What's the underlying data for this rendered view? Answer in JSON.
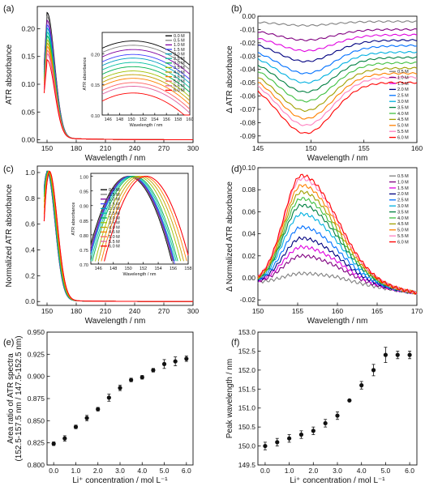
{
  "chart_data": [
    {
      "id": "a",
      "panel_label": "(a)",
      "type": "line",
      "xlabel": "Wavelength / nm",
      "ylabel": "ATR absorbance",
      "xlim": [
        140,
        300
      ],
      "ylim": [
        -0.005,
        0.24
      ],
      "xticks": [
        150,
        180,
        210,
        240,
        270,
        300
      ],
      "yticks": [
        0.0,
        0.05,
        0.1,
        0.15,
        0.2
      ],
      "ytick_labels": [
        "0.00",
        "0.05",
        "0.10",
        "0.15",
        "0.20"
      ],
      "curve_model": "absorption_band",
      "peak_at": 150,
      "peaks": [
        0.225,
        0.218,
        0.211,
        0.203,
        0.197,
        0.19,
        0.183,
        0.176,
        0.17,
        0.164,
        0.157,
        0.151,
        0.14
      ],
      "inset": {
        "xlabel": "Wavelength / nm",
        "ylabel": "ATR absorbance",
        "xlim": [
          145,
          160
        ],
        "ylim": [
          0.1,
          0.235
        ],
        "xticks": [
          146,
          148,
          150,
          152,
          154,
          156,
          158,
          160
        ],
        "yticks": [
          0.1,
          0.15,
          0.2
        ],
        "ytick_labels": [
          "0.10",
          "0.15",
          "0.20"
        ],
        "curve_model": "inset_abs"
      }
    },
    {
      "id": "b",
      "panel_label": "(b)",
      "type": "line",
      "xlabel": "Wavelength / nm",
      "ylabel": "Δ ATR absorbance",
      "xlim": [
        145,
        160
      ],
      "ylim": [
        -0.095,
        0.0
      ],
      "xticks": [
        145,
        150,
        155,
        160
      ],
      "yticks": [
        0.0,
        -0.01,
        -0.02,
        -0.03,
        -0.04,
        -0.05,
        -0.06,
        -0.07,
        -0.08,
        -0.09
      ],
      "ytick_labels": [
        "0.00",
        "-0.01",
        "-0.02",
        "-0.03",
        "-0.04",
        "-0.05",
        "-0.06",
        "-0.07",
        "-0.08",
        "-0.09"
      ],
      "curve_model": "difference_dip",
      "min_at": 149.5,
      "minima": [
        -0.007,
        -0.018,
        -0.026,
        -0.034,
        -0.043,
        -0.05,
        -0.057,
        -0.064,
        -0.071,
        -0.077,
        -0.082,
        -0.088
      ],
      "ends": [
        -0.004,
        -0.01,
        -0.014,
        -0.018,
        -0.022,
        -0.027,
        -0.031,
        -0.035,
        -0.039,
        -0.043,
        -0.046,
        -0.05
      ]
    },
    {
      "id": "c",
      "panel_label": "(c)",
      "type": "line",
      "xlabel": "Wavelength / nm",
      "ylabel": "Normalized ATR absorbance",
      "xlim": [
        140,
        300
      ],
      "ylim": [
        -0.03,
        1.05
      ],
      "xticks": [
        150,
        180,
        210,
        240,
        270,
        300
      ],
      "yticks": [
        0.0,
        0.2,
        0.4,
        0.6,
        0.8,
        1.0
      ],
      "ytick_labels": [
        "0.0",
        "0.2",
        "0.4",
        "0.6",
        "0.8",
        "1.0"
      ],
      "curve_model": "normalized_band",
      "inset": {
        "xlabel": "Wavelength / nm",
        "ylabel": "ATR absorbance",
        "xlim": [
          145,
          158
        ],
        "ylim": [
          0.7,
          1.01
        ],
        "xticks": [
          146,
          148,
          150,
          152,
          154,
          156,
          158
        ],
        "yticks": [
          0.7,
          0.75,
          0.8,
          0.85,
          0.9,
          0.95,
          1.0
        ],
        "ytick_labels": [
          "0.70",
          "0.75",
          "0.80",
          "0.85",
          "0.90",
          "0.95",
          "1.00"
        ],
        "curve_model": "inset_norm",
        "peak_shift": [
          150.0,
          150.1,
          150.2,
          150.3,
          150.4,
          150.6,
          150.8,
          151.2,
          151.6,
          152.0,
          152.4,
          152.4,
          152.4
        ]
      }
    },
    {
      "id": "d",
      "panel_label": "(d)",
      "type": "line",
      "xlabel": "Wavelength / nm",
      "ylabel": "Δ Normalized ATR absorbance",
      "xlim": [
        150,
        170
      ],
      "ylim": [
        -0.025,
        0.1
      ],
      "xticks": [
        150,
        155,
        160,
        165,
        170
      ],
      "yticks": [
        -0.02,
        0.0,
        0.02,
        0.04,
        0.06,
        0.08,
        0.1
      ],
      "ytick_labels": [
        "-0.02",
        "0.00",
        "0.02",
        "0.04",
        "0.06",
        "0.08",
        "0.10"
      ],
      "curve_model": "normalized_difference",
      "peak_at": 155.5,
      "peaks": [
        0.008,
        0.024,
        0.032,
        0.04,
        0.05,
        0.062,
        0.07,
        0.076,
        0.082,
        0.088,
        0.094,
        0.097
      ]
    },
    {
      "id": "e",
      "panel_label": "(e)",
      "type": "scatter",
      "xlabel": "Li⁺ concentration / mol L⁻¹",
      "ylabel": "Area ratio of ATR spectra (152.5-157.5 nm / 147.5-152.5 nm)",
      "ylabel_lines": [
        "Area ratio of ATR spectra",
        "(152.5-157.5 nm / 147.5-152.5 nm)"
      ],
      "xlim": [
        -0.3,
        6.3
      ],
      "ylim": [
        0.8,
        0.95
      ],
      "xticks": [
        0.0,
        1.0,
        2.0,
        3.0,
        4.0,
        5.0,
        6.0
      ],
      "xtick_labels": [
        "0.0",
        "1.0",
        "2.0",
        "3.0",
        "4.0",
        "5.0",
        "6.0"
      ],
      "yticks": [
        0.8,
        0.825,
        0.85,
        0.875,
        0.9,
        0.925,
        0.95
      ],
      "ytick_labels": [
        "0.800",
        "0.825",
        "0.850",
        "0.875",
        "0.900",
        "0.925",
        "0.950"
      ],
      "x": [
        0.0,
        0.5,
        1.0,
        1.5,
        2.0,
        2.5,
        3.0,
        3.5,
        4.0,
        4.5,
        5.0,
        5.5,
        6.0
      ],
      "y": [
        0.824,
        0.83,
        0.843,
        0.853,
        0.863,
        0.876,
        0.887,
        0.896,
        0.899,
        0.907,
        0.914,
        0.917,
        0.92
      ],
      "err": [
        0.002,
        0.003,
        0.002,
        0.003,
        0.002,
        0.004,
        0.003,
        0.002,
        0.002,
        0.002,
        0.005,
        0.005,
        0.003
      ]
    },
    {
      "id": "f",
      "panel_label": "(f)",
      "type": "scatter",
      "xlabel": "Li⁺ concentration / mol L⁻¹",
      "ylabel": "Peak wavelength / nm",
      "xlim": [
        -0.3,
        6.3
      ],
      "ylim": [
        149.5,
        153.0
      ],
      "xticks": [
        0.0,
        1.0,
        2.0,
        3.0,
        4.0,
        5.0,
        6.0
      ],
      "xtick_labels": [
        "0.0",
        "1.0",
        "2.0",
        "3.0",
        "4.0",
        "5.0",
        "6.0"
      ],
      "yticks": [
        149.5,
        150.0,
        150.5,
        151.0,
        151.5,
        152.0,
        152.5,
        153.0
      ],
      "ytick_labels": [
        "149.5",
        "150.0",
        "150.5",
        "151.0",
        "151.5",
        "152.0",
        "152.5",
        "153.0"
      ],
      "x": [
        0.0,
        0.5,
        1.0,
        1.5,
        2.0,
        2.5,
        3.0,
        3.5,
        4.0,
        4.5,
        5.0,
        5.5,
        6.0
      ],
      "y": [
        150.0,
        150.1,
        150.2,
        150.3,
        150.4,
        150.6,
        150.8,
        151.2,
        151.6,
        152.0,
        152.4,
        152.4,
        152.4
      ],
      "err": [
        0.1,
        0.1,
        0.1,
        0.1,
        0.1,
        0.1,
        0.1,
        0.0,
        0.1,
        0.15,
        0.2,
        0.1,
        0.1
      ]
    }
  ],
  "legend_a": [
    "0.0 M",
    "0.5 M",
    "1.0 M",
    "1.5 M",
    "2.0 M",
    "2.5 M",
    "3.0 M",
    "3.5 M",
    "4.0 M",
    "4.5 M",
    "5.0 M",
    "5.5 M",
    "6.0 M"
  ],
  "legend_b": [
    "0.5 M",
    "1.0 M",
    "1.5 M",
    "2.0 M",
    "2.5 M",
    "3.0 M",
    "3.5 M",
    "4.0 M",
    "4.5 M",
    "5.0 M",
    "5.5 M",
    "6.0 M"
  ],
  "colors_13": [
    "#000000",
    "#808080",
    "#7f00a0",
    "#4040ff",
    "#00a0c0",
    "#00c0a0",
    "#00b050",
    "#a0c000",
    "#c0a000",
    "#ff8000",
    "#ff6060",
    "#e060a0",
    "#ff0000"
  ],
  "colors_12": [
    "#808080",
    "#800080",
    "#e000e0",
    "#000080",
    "#0070ff",
    "#00b0e0",
    "#008040",
    "#40c040",
    "#a0a000",
    "#ff8000",
    "#ff80c0",
    "#ff0000"
  ]
}
